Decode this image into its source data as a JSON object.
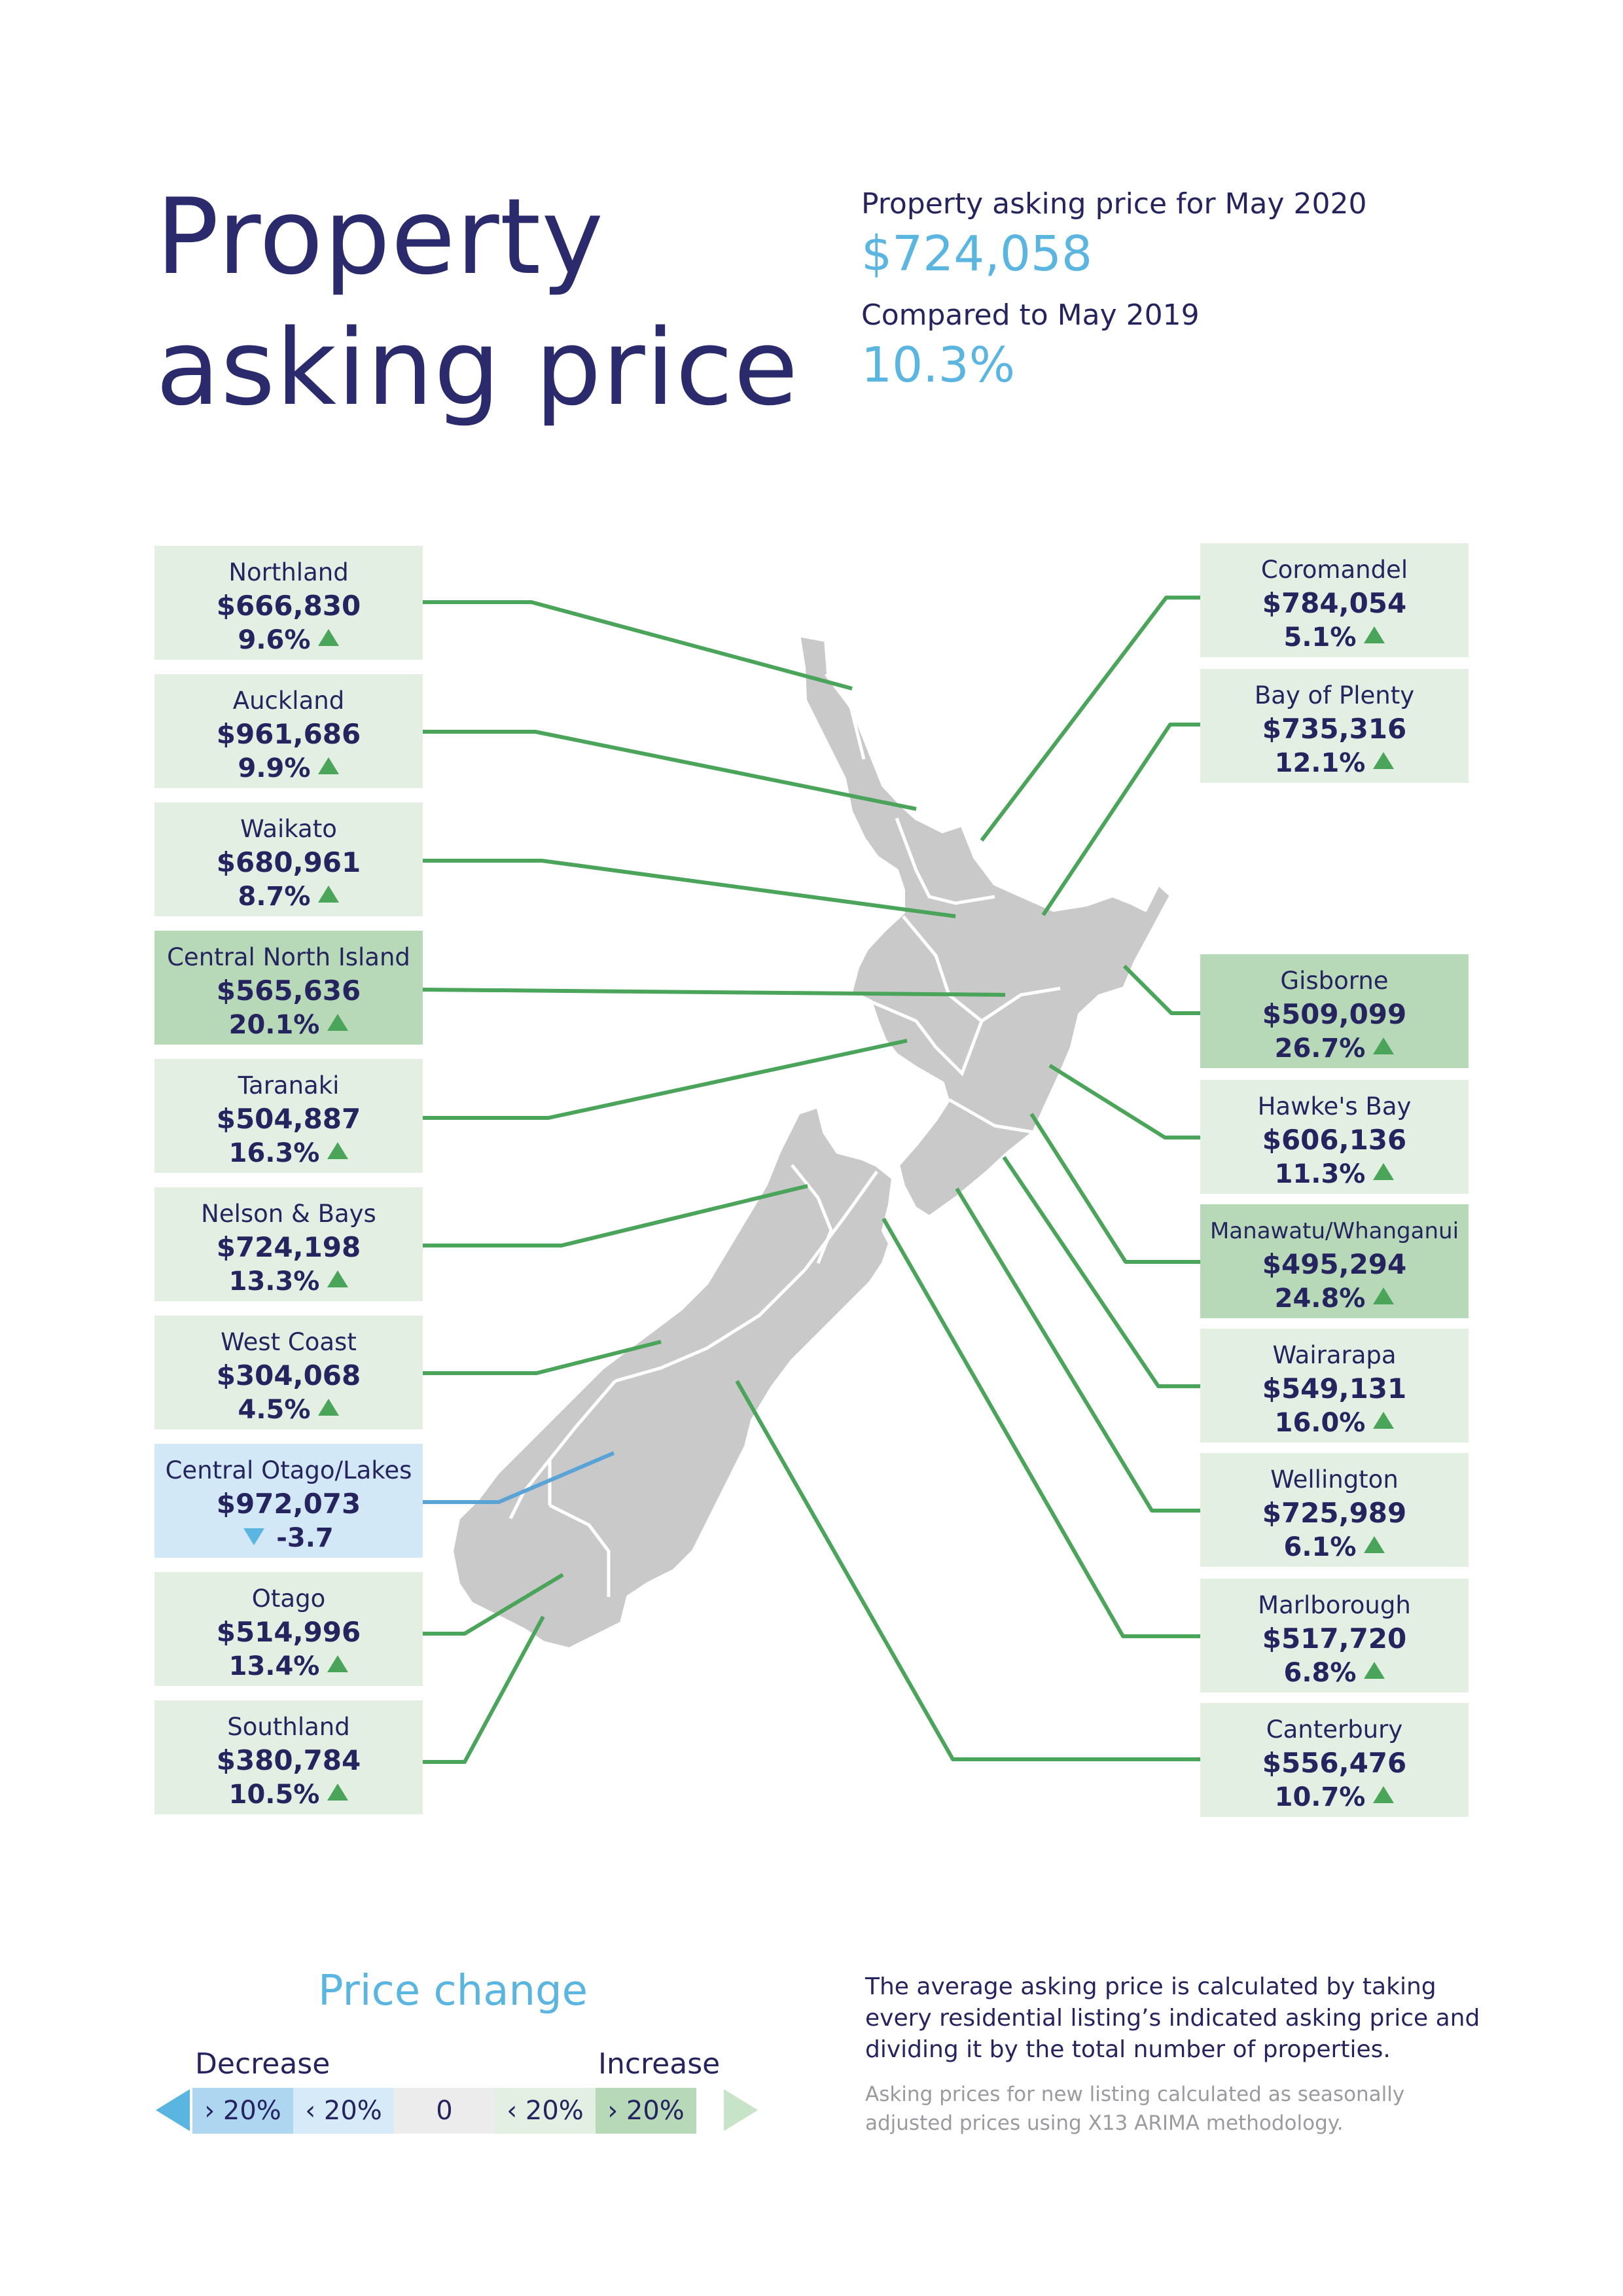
{
  "header": {
    "title_line1": "Property",
    "title_line2": "asking price",
    "summary_label": "Property asking price for May 2020",
    "summary_value": "$724,058",
    "compare_label": "Compared to May 2019",
    "compare_value": "10.3%"
  },
  "regions": [
    {
      "name": "Northland",
      "price": "$666,830",
      "change": "9.6%",
      "direction": "up"
    },
    {
      "name": "Auckland",
      "price": "$961,686",
      "change": "9.9%",
      "direction": "up"
    },
    {
      "name": "Waikato",
      "price": "$680,961",
      "change": "8.7%",
      "direction": "up"
    },
    {
      "name": "Central North Island",
      "price": "$565,636",
      "change": "20.1%",
      "direction": "up"
    },
    {
      "name": "Taranaki",
      "price": "$504,887",
      "change": "16.3%",
      "direction": "up"
    },
    {
      "name": "Nelson & Bays",
      "price": "$724,198",
      "change": "13.3%",
      "direction": "up"
    },
    {
      "name": "West Coast",
      "price": "$304,068",
      "change": "4.5%",
      "direction": "up"
    },
    {
      "name": "Central Otago/Lakes",
      "price": "$972,073",
      "change": "-3.7",
      "direction": "down"
    },
    {
      "name": "Otago",
      "price": "$514,996",
      "change": "13.4%",
      "direction": "up"
    },
    {
      "name": "Southland",
      "price": "$380,784",
      "change": "10.5%",
      "direction": "up"
    },
    {
      "name": "Coromandel",
      "price": "$784,054",
      "change": "5.1%",
      "direction": "up"
    },
    {
      "name": "Bay of Plenty",
      "price": "$735,316",
      "change": "12.1%",
      "direction": "up"
    },
    {
      "name": "Gisborne",
      "price": "$509,099",
      "change": "26.7%",
      "direction": "up"
    },
    {
      "name": "Hawke's Bay",
      "price": "$606,136",
      "change": "11.3%",
      "direction": "up"
    },
    {
      "name": "Manawatu/Whanganui",
      "price": "$495,294",
      "change": "24.8%",
      "direction": "up"
    },
    {
      "name": "Wairarapa",
      "price": "$549,131",
      "change": "16.0%",
      "direction": "up"
    },
    {
      "name": "Wellington",
      "price": "$725,989",
      "change": "6.1%",
      "direction": "up"
    },
    {
      "name": "Marlborough",
      "price": "$517,720",
      "change": "6.8%",
      "direction": "up"
    },
    {
      "name": "Canterbury",
      "price": "$556,476",
      "change": "10.7%",
      "direction": "up"
    }
  ],
  "legend": {
    "title": "Price change",
    "decrease_label": "Decrease",
    "increase_label": "Increase",
    "segments": [
      "› 20%",
      "‹ 20%",
      "0",
      "‹ 20%",
      "› 20%"
    ]
  },
  "notes": {
    "method": "The average asking price is calculated by taking every residential listing’s indicated asking price and dividing it by the total number of properties.",
    "seasonal": "Asking prices for new listing calculated as seasonally adjusted prices using X13 ARIMA methodology."
  },
  "colors": {
    "navy": "#25245f",
    "accent_blue": "#5ab5e1",
    "box_light_green": "#e2efe2",
    "box_mid_green": "#b7d9b8",
    "box_light_blue": "#d3e8f6",
    "connector_green": "#4aa45a",
    "map_grey": "#c9c9c9"
  }
}
